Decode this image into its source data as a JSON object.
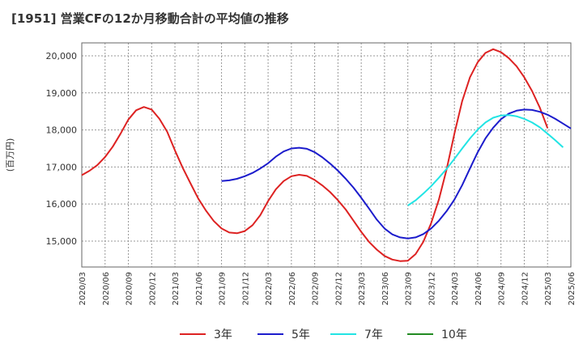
{
  "chart_data": {
    "type": "line",
    "title": "[1951]  営業CFの12か月移動合計の平均値の推移",
    "ylabel": "(百万円)",
    "xlabel": "",
    "ylim": [
      14300,
      20350
    ],
    "grid": true,
    "legend_position": "bottom",
    "x_ticks": [
      "2020/03",
      "2020/06",
      "2020/09",
      "2020/12",
      "2021/03",
      "2021/06",
      "2021/09",
      "2021/12",
      "2022/03",
      "2022/06",
      "2022/09",
      "2022/12",
      "2023/03",
      "2023/06",
      "2023/09",
      "2023/12",
      "2024/03",
      "2024/06",
      "2024/09",
      "2024/12",
      "2025/03",
      "2025/06"
    ],
    "y_ticks": [
      15000,
      16000,
      17000,
      18000,
      19000,
      20000
    ],
    "y_tick_labels": [
      "15,000",
      "16,000",
      "17,000",
      "18,000",
      "19,000",
      "20,000"
    ],
    "series": [
      {
        "name": "3年",
        "color": "#dd2222",
        "start": "2020/03",
        "values": [
          16780,
          16900,
          17050,
          17270,
          17550,
          17900,
          18280,
          18530,
          18620,
          18550,
          18300,
          17950,
          17450,
          16980,
          16560,
          16150,
          15820,
          15540,
          15340,
          15230,
          15210,
          15270,
          15430,
          15700,
          16080,
          16400,
          16620,
          16750,
          16790,
          16760,
          16650,
          16500,
          16320,
          16100,
          15850,
          15550,
          15250,
          14980,
          14770,
          14600,
          14500,
          14460,
          14470,
          14650,
          14980,
          15480,
          16120,
          16940,
          17900,
          18780,
          19420,
          19830,
          20080,
          20180,
          20100,
          19940,
          19720,
          19420,
          19050,
          18600,
          18050
        ]
      },
      {
        "name": "5年",
        "color": "#1c1ccc",
        "start": "2021/09",
        "values": [
          16620,
          16640,
          16680,
          16750,
          16840,
          16960,
          17100,
          17280,
          17420,
          17500,
          17520,
          17490,
          17400,
          17260,
          17090,
          16900,
          16680,
          16440,
          16170,
          15880,
          15580,
          15340,
          15180,
          15100,
          15070,
          15100,
          15190,
          15340,
          15550,
          15810,
          16120,
          16510,
          16960,
          17400,
          17770,
          18060,
          18290,
          18440,
          18520,
          18550,
          18540,
          18490,
          18410,
          18300,
          18170,
          18040
        ]
      },
      {
        "name": "7年",
        "color": "#22e4e4",
        "start": "2023/09",
        "values": [
          15960,
          16100,
          16280,
          16480,
          16710,
          16950,
          17220,
          17500,
          17770,
          18010,
          18200,
          18330,
          18390,
          18400,
          18370,
          18300,
          18200,
          18070,
          17900,
          17720,
          17530
        ]
      },
      {
        "name": "10年",
        "color": "#228b22",
        "start": "2025/03",
        "values": []
      }
    ]
  }
}
